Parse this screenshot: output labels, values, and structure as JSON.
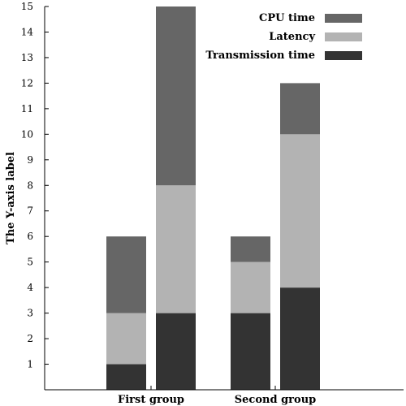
{
  "chart_data": {
    "type": "bar",
    "stacked": true,
    "title": "",
    "xlabel": "",
    "ylabel": "The Y-axis label",
    "ylim": [
      0,
      15
    ],
    "yticks": [
      1,
      2,
      3,
      4,
      5,
      6,
      7,
      8,
      9,
      10,
      11,
      12,
      13,
      14,
      15
    ],
    "grid": false,
    "legend_position": "top-right",
    "categories": [
      "First group",
      "Second group"
    ],
    "bars_per_category": 2,
    "series": [
      {
        "name": "Transmission time",
        "color": "#333333",
        "values": [
          [
            1,
            3
          ],
          [
            3,
            4
          ]
        ]
      },
      {
        "name": "Latency",
        "color": "#b3b3b3",
        "values": [
          [
            2,
            5
          ],
          [
            2,
            6
          ]
        ]
      },
      {
        "name": "CPU time",
        "color": "#666666",
        "values": [
          [
            3,
            7
          ],
          [
            1,
            2
          ]
        ]
      }
    ],
    "legend_order": [
      "CPU time",
      "Latency",
      "Transmission time"
    ]
  }
}
